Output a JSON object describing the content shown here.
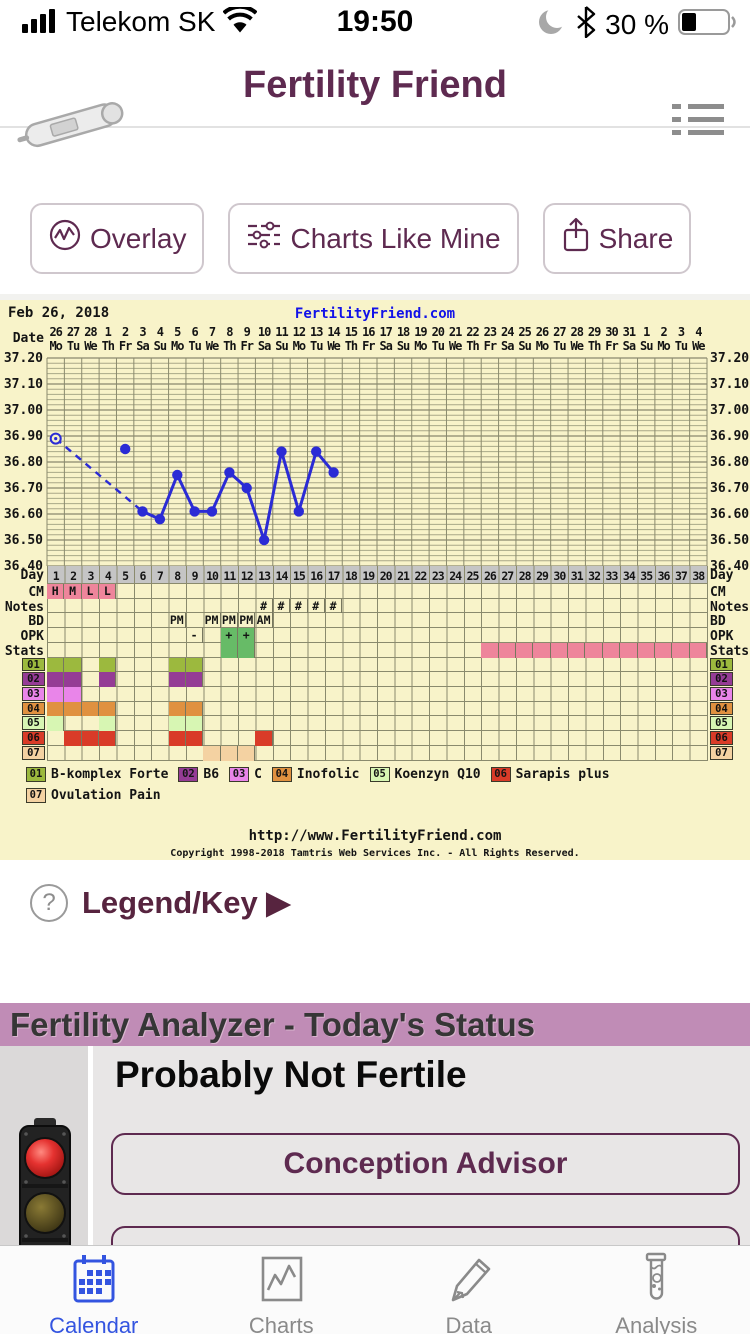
{
  "status_bar": {
    "carrier": "Telekom SK",
    "time": "19:50",
    "battery_text": "30 %",
    "battery_level": 30,
    "icons": [
      "signal-bars-icon",
      "wifi-icon",
      "moon-icon",
      "bluetooth-icon",
      "battery-icon"
    ]
  },
  "header": {
    "title": "Fertility Friend",
    "icons": [
      "thermometer-icon",
      "menu-list-icon"
    ]
  },
  "toolbar": {
    "overlay_label": "Overlay",
    "charts_like_mine_label": "Charts Like Mine",
    "share_label": "Share"
  },
  "legend_key": {
    "label": "Legend/Key ▶",
    "icon": "question-circle-icon"
  },
  "analyzer": {
    "header": "Fertility Analyzer - Today's Status",
    "status": "Probably Not Fertile",
    "advisor_button": "Conception Advisor",
    "traffic_light": "red-lit"
  },
  "tab_bar": {
    "items": [
      {
        "label": "Calendar",
        "icon": "calendar-icon",
        "active": true
      },
      {
        "label": "Charts",
        "icon": "chart-icon",
        "active": false
      },
      {
        "label": "Data",
        "icon": "pencil-icon",
        "active": false
      },
      {
        "label": "Analysis",
        "icon": "test-tube-icon",
        "active": false
      }
    ]
  },
  "chart_data": {
    "type": "line",
    "title": "Feb 26, 2018",
    "watermark": "FertilityFriend.com",
    "footer_url": "http://www.FertilityFriend.com",
    "footer_copyright": "Copyright 1998-2018 Tamtris Web Services Inc. - All Rights Reserved.",
    "date_axis_label": "Date",
    "day_axis_label": "Day",
    "num_days": 38,
    "x_dates": [
      "26",
      "27",
      "28",
      "1",
      "2",
      "3",
      "4",
      "5",
      "6",
      "7",
      "8",
      "9",
      "10",
      "11",
      "12",
      "13",
      "14",
      "15",
      "16",
      "17",
      "18",
      "19",
      "20",
      "21",
      "22",
      "23",
      "24",
      "25",
      "26",
      "27",
      "28",
      "29",
      "30",
      "31",
      "1",
      "2",
      "3",
      "4"
    ],
    "x_weekdays": [
      "Mo",
      "Tu",
      "We",
      "Th",
      "Fr",
      "Sa",
      "Su",
      "Mo",
      "Tu",
      "We",
      "Th",
      "Fr",
      "Sa",
      "Su",
      "Mo",
      "Tu",
      "We",
      "Th",
      "Fr",
      "Sa",
      "Su",
      "Mo",
      "Tu",
      "We",
      "Th",
      "Fr",
      "Sa",
      "Su",
      "Mo",
      "Tu",
      "We",
      "Th",
      "Fr",
      "Sa",
      "Su",
      "Mo",
      "Tu",
      "We"
    ],
    "y_ticks": [
      "37.20",
      "37.10",
      "37.00",
      "36.90",
      "36.80",
      "36.70",
      "36.60",
      "36.50",
      "36.40"
    ],
    "ylim": [
      36.4,
      37.2
    ],
    "grid": true,
    "temps": {
      "open_circle_point": {
        "day": 1,
        "temp": 36.89
      },
      "dashed_line": [
        {
          "day": 1,
          "temp": 36.89
        },
        {
          "day": 6,
          "temp": 36.61
        }
      ],
      "isolated_point": {
        "day": 5,
        "temp": 36.85
      },
      "solid_line": [
        {
          "day": 6,
          "temp": 36.61
        },
        {
          "day": 7,
          "temp": 36.58
        },
        {
          "day": 8,
          "temp": 36.75
        },
        {
          "day": 9,
          "temp": 36.61
        },
        {
          "day": 10,
          "temp": 36.61
        },
        {
          "day": 11,
          "temp": 36.76
        },
        {
          "day": 12,
          "temp": 36.7
        },
        {
          "day": 13,
          "temp": 36.5
        },
        {
          "day": 14,
          "temp": 36.84
        },
        {
          "day": 15,
          "temp": 36.61
        },
        {
          "day": 16,
          "temp": 36.84
        },
        {
          "day": 17,
          "temp": 36.76
        }
      ]
    },
    "rows": [
      {
        "label": "CM",
        "cells": [
          {
            "day": 1,
            "text": "H",
            "bg": "#ee859b"
          },
          {
            "day": 2,
            "text": "M",
            "bg": "#ee859b"
          },
          {
            "day": 3,
            "text": "L",
            "bg": "#ee859b"
          },
          {
            "day": 4,
            "text": "L",
            "bg": "#ee859b"
          }
        ]
      },
      {
        "label": "Notes",
        "cells": [
          {
            "day": 13,
            "text": "#"
          },
          {
            "day": 14,
            "text": "#"
          },
          {
            "day": 15,
            "text": "#"
          },
          {
            "day": 16,
            "text": "#"
          },
          {
            "day": 17,
            "text": "#"
          }
        ]
      },
      {
        "label": "BD",
        "cells": [
          {
            "day": 8,
            "text": "PM"
          },
          {
            "day": 10,
            "text": "PM"
          },
          {
            "day": 11,
            "text": "PM"
          },
          {
            "day": 12,
            "text": "PM"
          },
          {
            "day": 13,
            "text": "AM"
          }
        ]
      },
      {
        "label": "OPK",
        "cells": [
          {
            "day": 9,
            "text": "-"
          },
          {
            "day": 11,
            "text": "+",
            "bg": "#67bb67"
          },
          {
            "day": 12,
            "text": "+",
            "bg": "#67bb67"
          }
        ]
      },
      {
        "label": "Stats",
        "cells": [
          {
            "day": 11,
            "bg": "#67bb67"
          },
          {
            "day": 12,
            "bg": "#67bb67"
          },
          {
            "day": 26,
            "bg": "#ee859b"
          },
          {
            "day": 27,
            "bg": "#ee859b"
          },
          {
            "day": 28,
            "bg": "#ee859b"
          },
          {
            "day": 29,
            "bg": "#ee859b"
          },
          {
            "day": 30,
            "bg": "#ee859b"
          },
          {
            "day": 31,
            "bg": "#ee859b"
          },
          {
            "day": 32,
            "bg": "#ee859b"
          },
          {
            "day": 33,
            "bg": "#ee859b"
          },
          {
            "day": 34,
            "bg": "#ee859b"
          },
          {
            "day": 35,
            "bg": "#ee859b"
          },
          {
            "day": 36,
            "bg": "#ee859b"
          },
          {
            "day": 37,
            "bg": "#ee859b"
          },
          {
            "day": 38,
            "bg": "#ee859b"
          }
        ]
      }
    ],
    "medications": [
      {
        "id": "01",
        "name": "B-komplex Forte",
        "color": "#9cb93e",
        "days": [
          1,
          2,
          4,
          8,
          9
        ]
      },
      {
        "id": "02",
        "name": "B6",
        "color": "#953c95",
        "days": [
          1,
          2,
          4,
          8,
          9
        ]
      },
      {
        "id": "03",
        "name": "C",
        "color": "#e985e9",
        "days": [
          1,
          2
        ]
      },
      {
        "id": "04",
        "name": "Inofolic",
        "color": "#e09140",
        "days": [
          1,
          2,
          3,
          4,
          8,
          9
        ]
      },
      {
        "id": "05",
        "name": "Koenzyn Q10",
        "color": "#d7f6b3",
        "days": [
          1,
          4,
          8,
          9
        ]
      },
      {
        "id": "06",
        "name": "Sarapis plus",
        "color": "#d93b28",
        "days": [
          2,
          3,
          4,
          8,
          9,
          13
        ]
      },
      {
        "id": "07",
        "name": "Ovulation Pain",
        "color": "#f4d2a2",
        "days": [
          10,
          11,
          12
        ]
      }
    ],
    "colors": {
      "background": "#f8f3c9",
      "grid_minor": "#a9a888",
      "grid_major": "#6e6e57",
      "grid_vert": "#8a8a6d",
      "line": "#2b2bd5",
      "day_row_bg": "#c5c5c5",
      "watermark": "#1212e8",
      "pink": "#ee859b",
      "green": "#67bb67"
    }
  }
}
